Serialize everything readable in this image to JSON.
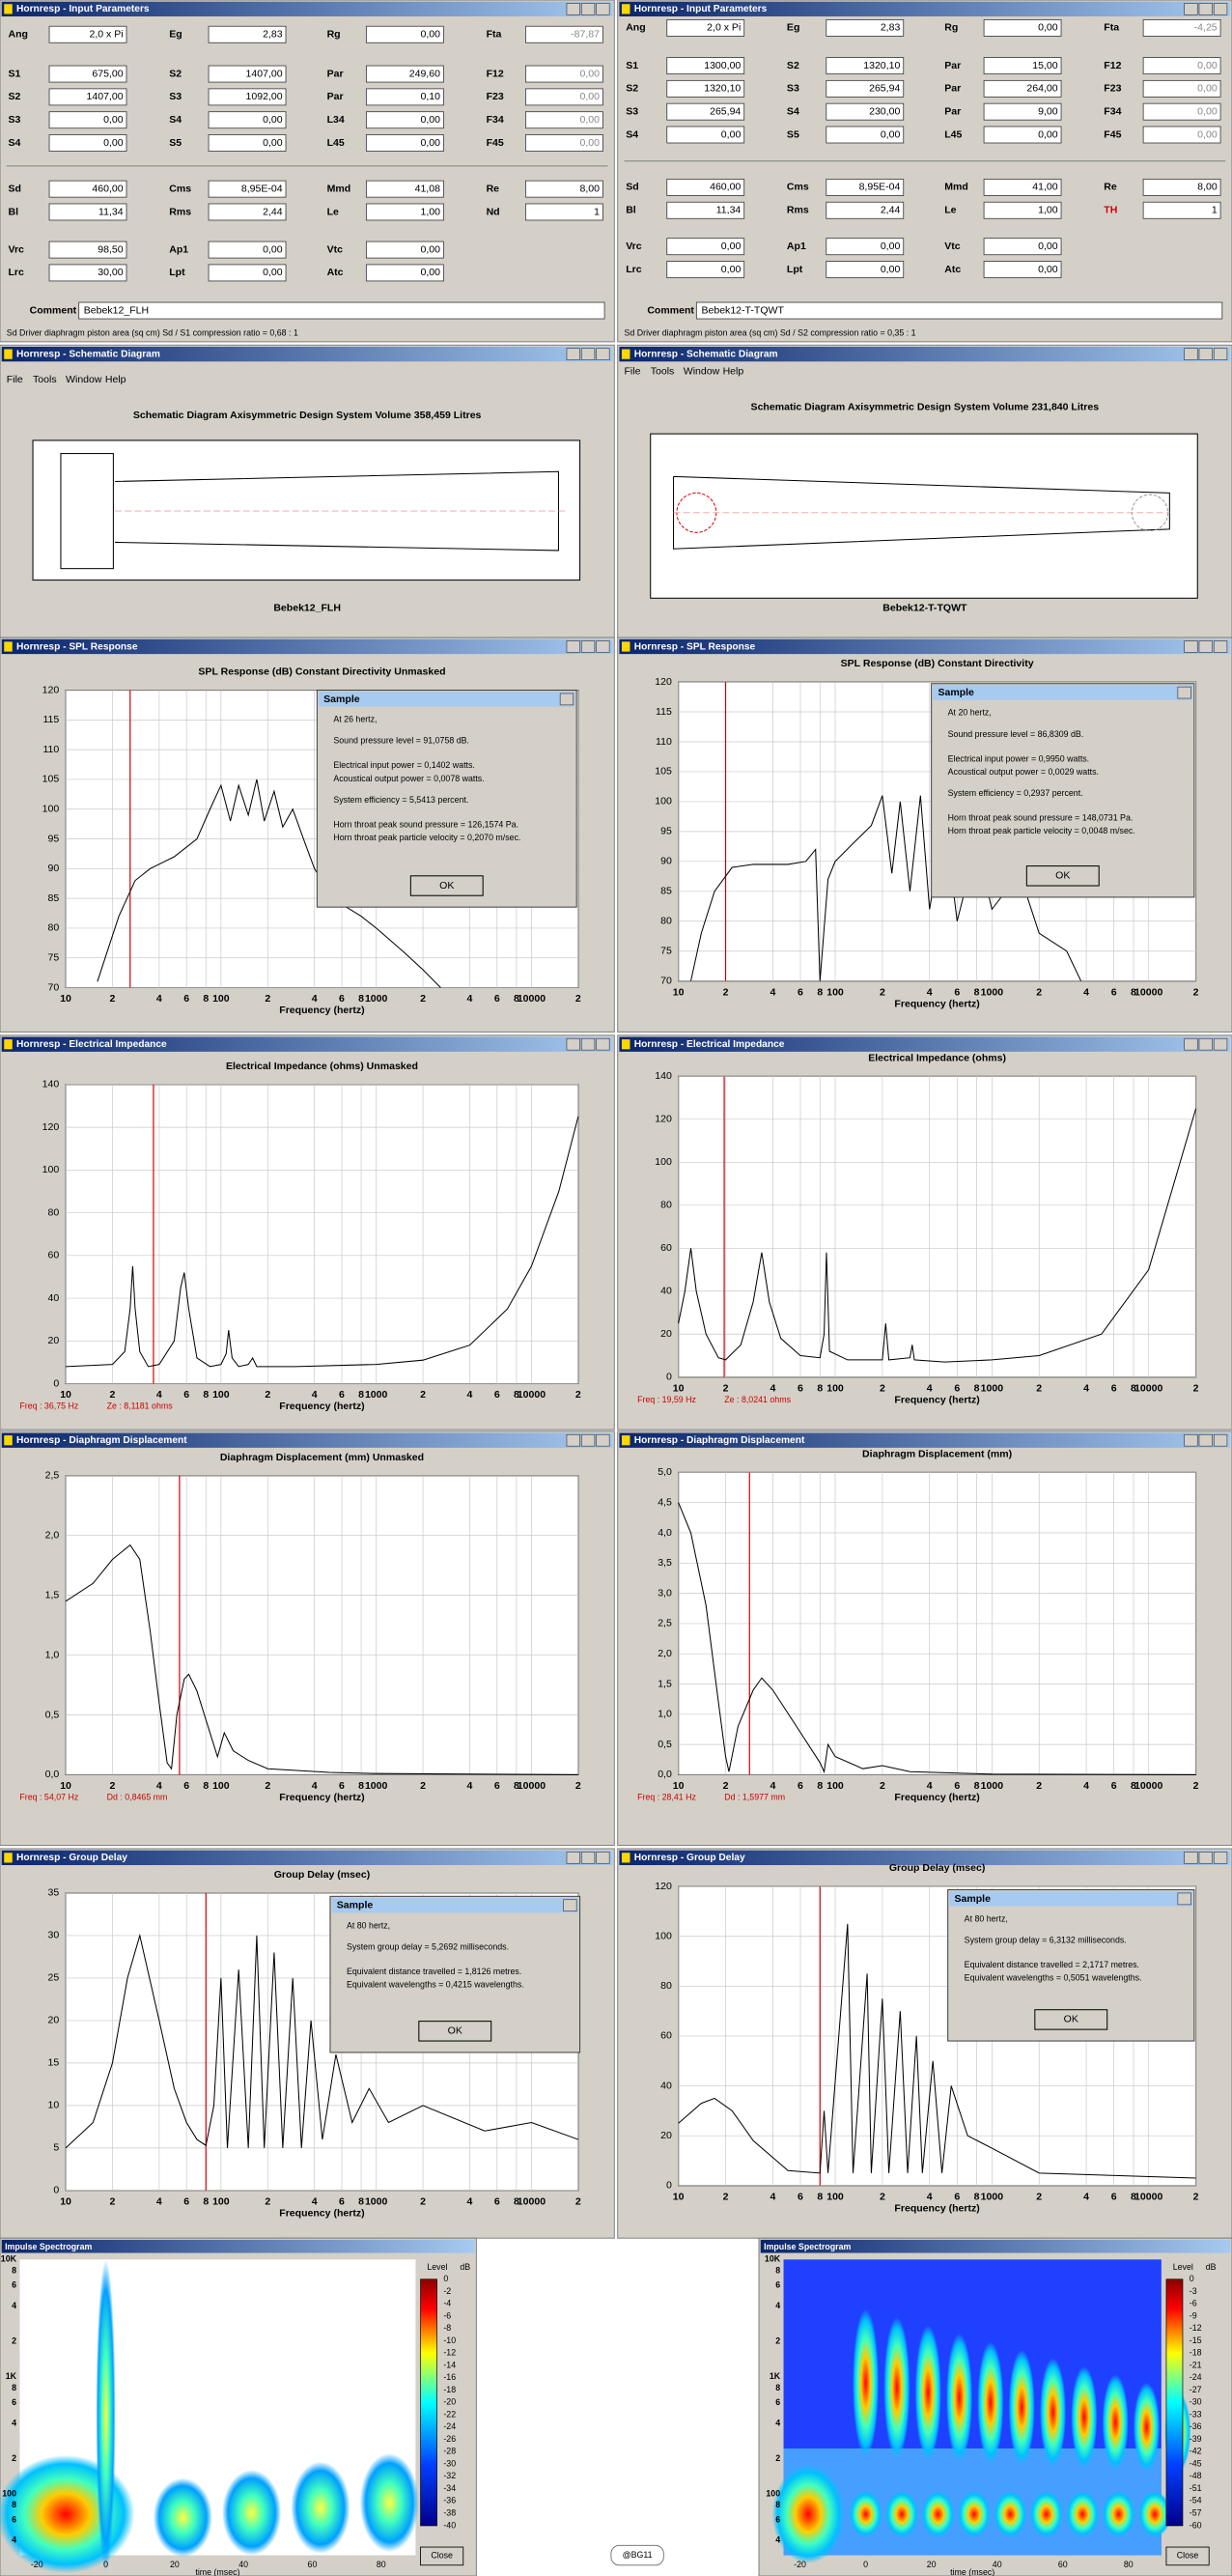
{
  "windows": {
    "input": "Hornresp - Input Parameters",
    "schematic": "Hornresp - Schematic Diagram",
    "spl": "Hornresp - SPL Response",
    "impedance": "Hornresp - Electrical Impedance",
    "displacement": "Hornresp - Diaphragm Displacement",
    "group_delay": "Hornresp - Group Delay"
  },
  "menu": [
    "File",
    "Tools",
    "Window",
    "Help"
  ],
  "dialog": {
    "title": "Sample",
    "button": "OK"
  },
  "comment_label": "Comment",
  "frequency_axis": {
    "label": "Frequency (hertz)",
    "xlim": [
      10,
      20000
    ],
    "xticks": [
      10,
      {
        "value": 20,
        "label": "2"
      },
      {
        "value": 40,
        "label": "4"
      },
      {
        "value": 60,
        "label": "6"
      },
      {
        "value": 80,
        "label": "8"
      },
      100,
      {
        "value": 200,
        "label": "2"
      },
      {
        "value": 400,
        "label": "4"
      },
      {
        "value": 600,
        "label": "6"
      },
      {
        "value": 800,
        "label": "8"
      },
      1000,
      {
        "value": 2000,
        "label": "2"
      },
      {
        "value": 4000,
        "label": "4"
      },
      {
        "value": 6000,
        "label": "6"
      },
      {
        "value": 8000,
        "label": "8"
      },
      10000,
      {
        "value": 20000,
        "label": "2"
      }
    ]
  },
  "designs": [
    {
      "params": [
        [
          "Ang",
          "2,0 x Pi",
          "Eg",
          "2,83",
          "Rg",
          "0,00",
          "Fta",
          "-87,87"
        ],
        [
          "S1",
          "675,00",
          "S2",
          "1407,00",
          "Par",
          "249,60",
          "F12",
          "0,00"
        ],
        [
          "S2",
          "1407,00",
          "S3",
          "1092,00",
          "Par",
          "0,10",
          "F23",
          "0,00"
        ],
        [
          "S3",
          "0,00",
          "S4",
          "0,00",
          "L34",
          "0,00",
          "F34",
          "0,00"
        ],
        [
          "S4",
          "0,00",
          "S5",
          "0,00",
          "L45",
          "0,00",
          "F45",
          "0,00"
        ],
        [
          "Sd",
          "460,00",
          "Cms",
          "8,95E-04",
          "Mmd",
          "41,08",
          "Re",
          "8,00"
        ],
        [
          "Bl",
          "11,34",
          "Rms",
          "2,44",
          "Le",
          "1,00",
          "Nd",
          "1"
        ],
        [
          "Vrc",
          "98,50",
          "Ap1",
          "0,00",
          "Vtc",
          "0,00"
        ],
        [
          "Lrc",
          "30,00",
          "Lpt",
          "0,00",
          "Atc",
          "0,00"
        ]
      ],
      "comment": "Bebek12_FLH",
      "status": "Sd  Driver diaphragm piston area (sq cm)   Sd / S1 compression ratio = 0,68 : 1",
      "schematic": {
        "title": "Schematic Diagram   Axisymmetric Design   System Volume 358,459 Litres",
        "name": "Bebek12_FLH"
      },
      "spl": {
        "title": "SPL Response (dB)   Constant Directivity   Unmasked",
        "ylim": [
          70,
          120
        ],
        "yticks": [
          70,
          75,
          80,
          85,
          90,
          95,
          100,
          105,
          110,
          115,
          120
        ],
        "marker": 26,
        "x": [
          16,
          22,
          28,
          35,
          50,
          70,
          85,
          100,
          115,
          130,
          150,
          170,
          190,
          220,
          250,
          290,
          340,
          400,
          500,
          600,
          800,
          1000,
          1500,
          2000,
          2600
        ],
        "y": [
          71,
          82,
          88,
          90,
          92,
          95,
          100,
          104,
          98,
          104,
          99,
          105,
          98,
          103,
          97,
          100,
          95,
          90,
          86,
          84,
          82,
          80,
          76,
          73,
          70
        ],
        "dialog": [
          "At 26 hertz,",
          "Sound pressure level = 91,0758 dB.",
          "Electrical input power = 0,1402 watts.",
          "Acoustical output power = 0,0078 watts.",
          "System efficiency = 5,5413 percent.",
          "Horn throat peak sound pressure = 126,1574 Pa.",
          "Horn throat peak particle velocity = 0,2070 m/sec."
        ]
      },
      "impedance": {
        "title": "Electrical Impedance (ohms)   Unmasked",
        "ylim": [
          0,
          140
        ],
        "yticks": [
          0,
          20,
          40,
          60,
          80,
          100,
          120,
          140
        ],
        "marker": 36.75,
        "readout": [
          "Freq : 36,75 Hz",
          "Ze : 8,1181 ohms"
        ],
        "x": [
          10,
          20,
          24,
          26,
          27,
          28,
          30,
          34,
          40,
          50,
          55,
          58,
          62,
          70,
          85,
          100,
          108,
          112,
          118,
          130,
          150,
          160,
          170,
          300,
          1000,
          2000,
          4000,
          7000,
          10000,
          15000,
          20000
        ],
        "y": [
          8,
          9,
          15,
          35,
          55,
          35,
          15,
          8,
          9,
          20,
          45,
          52,
          35,
          12,
          8,
          9,
          14,
          25,
          12,
          8,
          9,
          12,
          8,
          8,
          9,
          11,
          18,
          35,
          55,
          90,
          125
        ]
      },
      "displacement": {
        "title": "Diaphragm Displacement (mm)   Unmasked",
        "ylim": [
          0,
          2.5
        ],
        "yticks": [
          {
            "value": 0,
            "label": "0,0"
          },
          {
            "value": 0.5,
            "label": "0,5"
          },
          {
            "value": 1,
            "label": "1,0"
          },
          {
            "value": 1.5,
            "label": "1,5"
          },
          {
            "value": 2,
            "label": "2,0"
          },
          {
            "value": 2.5,
            "label": "2,5"
          }
        ],
        "marker": 54.07,
        "readout": [
          "Freq : 54,07 Hz",
          "Dd : 0,8465 mm"
        ],
        "x": [
          10,
          15,
          20,
          26,
          30,
          35,
          40,
          45,
          48,
          52,
          58,
          62,
          70,
          85,
          95,
          105,
          120,
          150,
          200,
          500,
          1000,
          20000
        ],
        "y": [
          1.45,
          1.6,
          1.8,
          1.92,
          1.8,
          1.2,
          0.6,
          0.1,
          0.05,
          0.5,
          0.8,
          0.84,
          0.7,
          0.35,
          0.15,
          0.35,
          0.2,
          0.12,
          0.05,
          0.02,
          0.01,
          0
        ]
      },
      "group_delay": {
        "title": "Group Delay (msec)",
        "ylim": [
          0,
          35
        ],
        "yticks": [
          0,
          5,
          10,
          15,
          20,
          25,
          30,
          35
        ],
        "marker": 80,
        "x": [
          10,
          15,
          20,
          25,
          30,
          40,
          50,
          60,
          70,
          80,
          90,
          100,
          110,
          130,
          150,
          170,
          190,
          220,
          250,
          290,
          330,
          380,
          450,
          550,
          700,
          900,
          1200,
          2000,
          5000,
          10000,
          20000
        ],
        "y": [
          5,
          8,
          15,
          25,
          30,
          20,
          12,
          8,
          6,
          5.3,
          10,
          25,
          5,
          26,
          5,
          30,
          5,
          28,
          5,
          25,
          5,
          20,
          6,
          16,
          8,
          12,
          8,
          10,
          7,
          8,
          6
        ],
        "dialog": [
          "At 80 hertz,",
          "System group delay = 5,2692 milliseconds.",
          "Equivalent distance travelled = 1,8126 metres.",
          "Equivalent wavelengths = 0,4215 wavelengths."
        ]
      }
    },
    {
      "params": [
        [
          "Ang",
          "2,0 x Pi",
          "Eg",
          "2,83",
          "Rg",
          "0,00",
          "Fta",
          "-4,25"
        ],
        [
          "S1",
          "1300,00",
          "S2",
          "1320,10",
          "Par",
          "15,00",
          "F12",
          "0,00"
        ],
        [
          "S2",
          "1320,10",
          "S3",
          "265,94",
          "Par",
          "264,00",
          "F23",
          "0,00"
        ],
        [
          "S3",
          "265,94",
          "S4",
          "230,00",
          "Par",
          "9,00",
          "F34",
          "0,00"
        ],
        [
          "S4",
          "0,00",
          "S5",
          "0,00",
          "L45",
          "0,00",
          "F45",
          "0,00"
        ],
        [
          "Sd",
          "460,00",
          "Cms",
          "8,95E-04",
          "Mmd",
          "41,00",
          "Re",
          "8,00"
        ],
        [
          "Bl",
          "11,34",
          "Rms",
          "2,44",
          "Le",
          "1,00",
          "TH",
          "1"
        ],
        [
          "Vrc",
          "0,00",
          "Ap1",
          "0,00",
          "Vtc",
          "0,00"
        ],
        [
          "Lrc",
          "0,00",
          "Lpt",
          "0,00",
          "Atc",
          "0,00"
        ]
      ],
      "comment": "Bebek12-T-TQWT",
      "status": "Sd  Driver diaphragm piston area (sq cm)   Sd / S2 compression ratio = 0,35 : 1",
      "schematic": {
        "title": "Schematic Diagram   Axisymmetric Design   System Volume 231,840 Litres",
        "name": "Bebek12-T-TQWT"
      },
      "spl": {
        "title": "SPL Response (dB)   Constant Directivity",
        "ylim": [
          70,
          120
        ],
        "yticks": [
          70,
          75,
          80,
          85,
          90,
          95,
          100,
          105,
          110,
          115,
          120
        ],
        "marker": 20,
        "x": [
          12,
          14,
          17,
          22,
          30,
          50,
          65,
          75,
          80,
          90,
          100,
          130,
          170,
          200,
          230,
          260,
          300,
          350,
          400,
          500,
          600,
          800,
          1000,
          1500,
          2000,
          3000,
          3700
        ],
        "y": [
          70,
          78,
          85,
          89,
          89.5,
          89.5,
          90,
          92,
          70,
          87,
          90,
          93,
          96,
          101,
          88,
          100,
          85,
          101,
          82,
          97,
          80,
          93,
          82,
          88,
          78,
          75,
          70
        ],
        "dialog": [
          "At 20 hertz,",
          "Sound pressure level = 86,8309 dB.",
          "Electrical input power = 0,9950 watts.",
          "Acoustical output power = 0,0029 watts.",
          "System efficiency = 0,2937 percent.",
          "Horn throat peak sound pressure = 148,0731 Pa.",
          "Horn throat peak particle velocity = 0,0048 m/sec."
        ]
      },
      "impedance": {
        "title": "Electrical Impedance (ohms)",
        "ylim": [
          0,
          140
        ],
        "yticks": [
          0,
          20,
          40,
          60,
          80,
          100,
          120,
          140
        ],
        "marker": 19.59,
        "readout": [
          "Freq : 19,59 Hz",
          "Ze : 8,0241 ohms"
        ],
        "x": [
          10,
          11,
          12,
          13,
          15,
          18,
          20,
          25,
          30,
          34,
          38,
          45,
          60,
          80,
          85,
          88,
          92,
          120,
          200,
          210,
          220,
          300,
          310,
          320,
          500,
          1000,
          2000,
          5000,
          10000,
          20000
        ],
        "y": [
          25,
          40,
          60,
          40,
          20,
          9,
          8,
          15,
          35,
          58,
          35,
          18,
          10,
          9,
          20,
          58,
          12,
          8,
          8,
          25,
          8,
          9,
          15,
          8,
          7,
          8,
          10,
          20,
          50,
          125
        ]
      },
      "displacement": {
        "title": "Diaphragm Displacement (mm)",
        "ylim": [
          0,
          5
        ],
        "yticks": [
          {
            "value": 0,
            "label": "0,0"
          },
          {
            "value": 0.5,
            "label": "0,5"
          },
          {
            "value": 1,
            "label": "1,0"
          },
          {
            "value": 1.5,
            "label": "1,5"
          },
          {
            "value": 2,
            "label": "2,0"
          },
          {
            "value": 2.5,
            "label": "2,5"
          },
          {
            "value": 3,
            "label": "3,0"
          },
          {
            "value": 3.5,
            "label": "3,5"
          },
          {
            "value": 4,
            "label": "4,0"
          },
          {
            "value": 4.5,
            "label": "4,5"
          },
          {
            "value": 5,
            "label": "5,0"
          }
        ],
        "marker": 28.41,
        "readout": [
          "Freq : 28,41 Hz",
          "Dd : 1,5977 mm"
        ],
        "x": [
          10,
          12,
          15,
          18,
          20,
          21,
          24,
          30,
          34,
          40,
          60,
          80,
          85,
          90,
          100,
          150,
          200,
          300,
          1000,
          20000
        ],
        "y": [
          4.5,
          4,
          2.8,
          1.2,
          0.3,
          0.05,
          0.8,
          1.4,
          1.6,
          1.4,
          0.7,
          0.2,
          0.05,
          0.5,
          0.3,
          0.1,
          0.15,
          0.05,
          0.01,
          0
        ]
      },
      "group_delay": {
        "title": "Group Delay (msec)",
        "ylim": [
          0,
          120
        ],
        "yticks": [
          0,
          20,
          40,
          60,
          80,
          100,
          120
        ],
        "marker": 80,
        "x": [
          10,
          14,
          17,
          22,
          30,
          50,
          80,
          85,
          90,
          120,
          130,
          160,
          170,
          200,
          220,
          260,
          290,
          330,
          360,
          420,
          480,
          550,
          700,
          1000,
          2000,
          20000
        ],
        "y": [
          25,
          33,
          35,
          30,
          18,
          6,
          5,
          30,
          5,
          105,
          5,
          85,
          5,
          75,
          5,
          70,
          5,
          60,
          5,
          50,
          5,
          40,
          20,
          15,
          5,
          3
        ],
        "dialog": [
          "At 80 hertz,",
          "System group delay = 6,3132 milliseconds.",
          "Equivalent distance travelled = 2,1717 metres.",
          "Equivalent wavelengths = 0,5051 wavelengths."
        ]
      }
    }
  ],
  "spectrogram": {
    "title": "Impulse Spectrogram",
    "xlabel": "time (msec)",
    "xlim": [
      -25,
      90
    ],
    "xticks": [
      -20,
      0,
      20,
      40,
      60,
      80
    ],
    "ylim": [
      30,
      10000
    ],
    "yticks": [
      {
        "value": 10000,
        "label": "10K"
      },
      {
        "value": 8000,
        "label": "8"
      },
      {
        "value": 6000,
        "label": "6"
      },
      {
        "value": 4000,
        "label": "4"
      },
      {
        "value": 2000,
        "label": "2"
      },
      {
        "value": 1000,
        "label": "1K"
      },
      {
        "value": 800,
        "label": "8"
      },
      {
        "value": 600,
        "label": "6"
      },
      {
        "value": 400,
        "label": "4"
      },
      {
        "value": 200,
        "label": "2"
      },
      100,
      {
        "value": 80,
        "label": "8"
      },
      {
        "value": 60,
        "label": "6"
      },
      {
        "value": 40,
        "label": "4"
      }
    ],
    "level_label": "Level",
    "level_unit": "dB",
    "close": "Close",
    "panels": [
      {
        "colorbar_ticks": [
          0,
          -2,
          -4,
          -6,
          -8,
          -10,
          -12,
          -14,
          -16,
          -18,
          -20,
          -22,
          -24,
          -26,
          -28,
          -30,
          -32,
          -34,
          -36,
          -38,
          -40
        ]
      },
      {
        "colorbar_ticks": [
          0,
          -3,
          -6,
          -9,
          -12,
          -15,
          -18,
          -21,
          -24,
          -27,
          -30,
          -33,
          -36,
          -39,
          -42,
          -45,
          -48,
          -51,
          -54,
          -57,
          -60
        ]
      }
    ]
  },
  "credit": "@BG11"
}
